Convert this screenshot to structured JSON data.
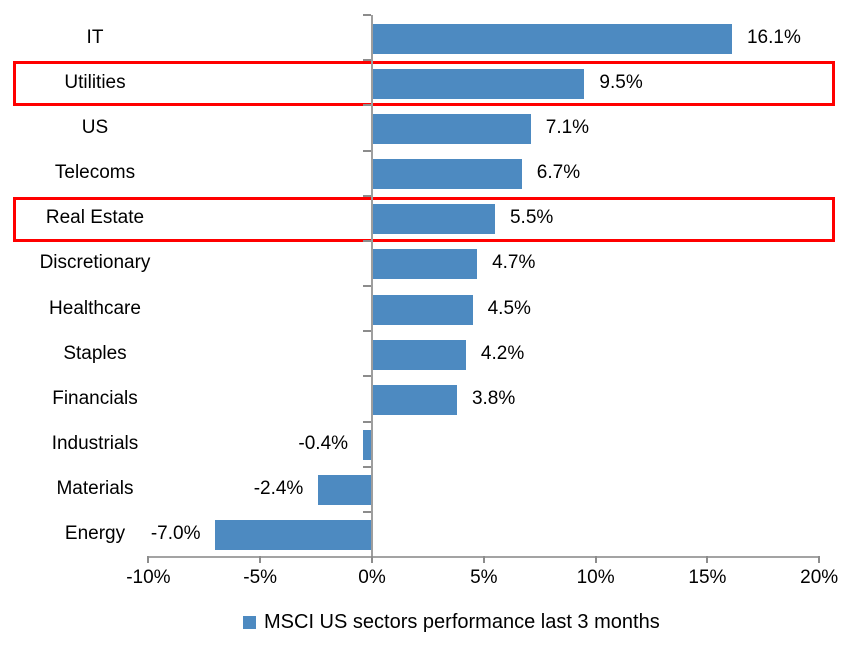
{
  "chart_data": {
    "type": "bar",
    "orientation": "horizontal",
    "categories": [
      "IT",
      "Utilities",
      "US",
      "Telecoms",
      "Real Estate",
      "Discretionary",
      "Healthcare",
      "Staples",
      "Financials",
      "Industrials",
      "Materials",
      "Energy"
    ],
    "values": [
      16.1,
      9.5,
      7.1,
      6.7,
      5.5,
      4.7,
      4.5,
      4.2,
      3.8,
      -0.4,
      -2.4,
      -7.0
    ],
    "data_labels": [
      "16.1%",
      "9.5%",
      "7.1%",
      "6.7%",
      "5.5%",
      "4.7%",
      "4.5%",
      "4.2%",
      "3.8%",
      "-0.4%",
      "-2.4%",
      "-7.0%"
    ],
    "highlighted_categories": [
      "Utilities",
      "Real Estate"
    ],
    "x_tick_labels": [
      "-10%",
      "-5%",
      "0%",
      "5%",
      "10%",
      "15%",
      "20%"
    ],
    "x_tick_values": [
      -10,
      -5,
      0,
      5,
      10,
      15,
      20
    ],
    "xlim": [
      -10,
      20
    ],
    "grid": false,
    "legend": "MSCI US sectors performance last 3 months",
    "legend_position": "bottom",
    "colors": {
      "bar": "#4d8ac1",
      "highlight_box": "#ff0000",
      "axis_line": "#a3a3a3",
      "tick": "#8c8c8c",
      "text": "#000000",
      "background": "#ffffff"
    }
  }
}
